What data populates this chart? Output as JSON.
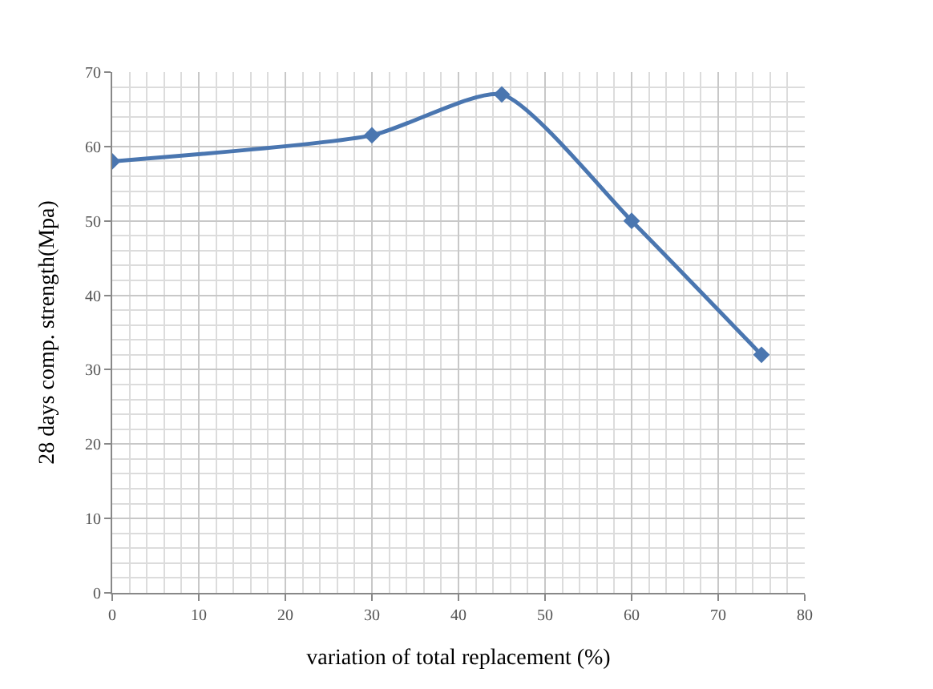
{
  "chart_data": {
    "type": "line",
    "xlabel": "variation of total replacement (%)",
    "ylabel": "28 days comp. strength(Mpa)",
    "x": [
      0,
      30,
      45,
      60,
      75
    ],
    "series": [
      {
        "color": "#4a76b0",
        "values": [
          58,
          61.5,
          67,
          50,
          32
        ]
      }
    ],
    "xlim": [
      0,
      80
    ],
    "xticks": [
      0,
      10,
      20,
      30,
      40,
      50,
      60,
      70,
      80
    ],
    "ylim": [
      0,
      70
    ],
    "yticks": [
      0,
      10,
      20,
      30,
      40,
      50,
      60,
      70
    ],
    "grid": true,
    "marker": "diamond",
    "line_style": "solid"
  }
}
